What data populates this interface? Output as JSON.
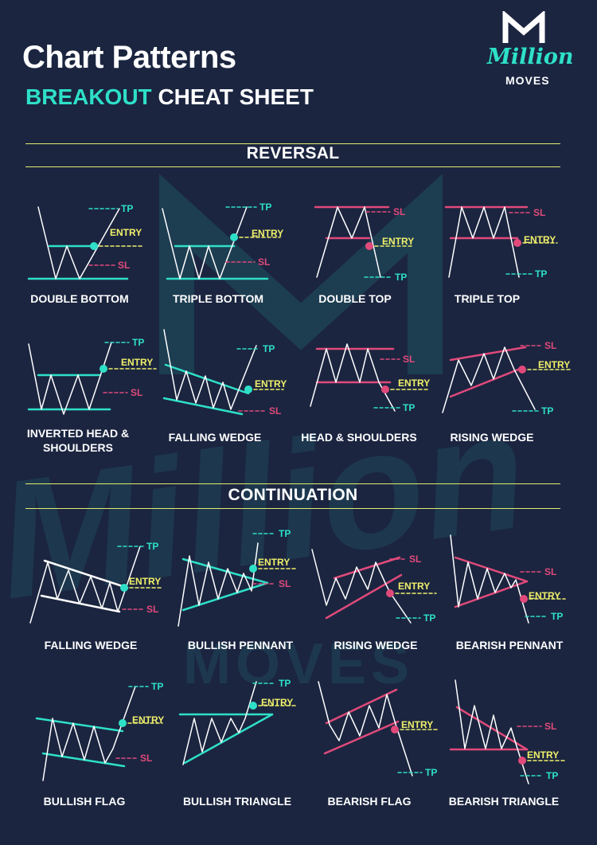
{
  "header": {
    "title": "Chart Patterns",
    "subtitle_accent": "BREAKOUT",
    "subtitle_rest": "CHEAT SHEET"
  },
  "logo": {
    "icon": "m-logo-icon",
    "script": "Million",
    "word": "MOVES"
  },
  "marker_labels": {
    "tp": "TP",
    "sl": "SL",
    "entry": "ENTRY"
  },
  "colors": {
    "background": "#1b2540",
    "accent_teal": "#2ee0c8",
    "divider_yellow": "#e3ec6e",
    "entry_yellow": "#f0f06a",
    "sl_pink": "#e04a7a",
    "white": "#ffffff"
  },
  "sections": [
    {
      "title": "REVERSAL",
      "patterns": [
        {
          "label": "DOUBLE BOTTOM"
        },
        {
          "label": "TRIPLE BOTTOM"
        },
        {
          "label": "DOUBLE TOP"
        },
        {
          "label": "TRIPLE TOP"
        },
        {
          "label": "INVERTED HEAD & SHOULDERS"
        },
        {
          "label": "FALLING WEDGE"
        },
        {
          "label": "HEAD & SHOULDERS"
        },
        {
          "label": "RISING WEDGE"
        }
      ]
    },
    {
      "title": "CONTINUATION",
      "patterns": [
        {
          "label": "FALLING WEDGE"
        },
        {
          "label": "BULLISH PENNANT"
        },
        {
          "label": "RISING WEDGE"
        },
        {
          "label": "BEARISH PENNANT"
        },
        {
          "label": "BULLISH FLAG"
        },
        {
          "label": "BULLISH TRIANGLE"
        },
        {
          "label": "BEARISH FLAG"
        },
        {
          "label": "BEARISH TRIANGLE"
        }
      ]
    }
  ]
}
